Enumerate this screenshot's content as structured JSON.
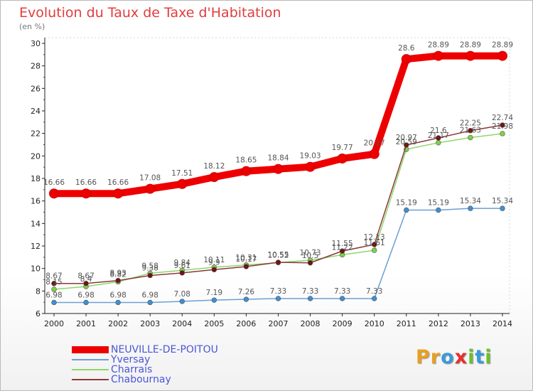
{
  "chart_data": {
    "type": "line",
    "title": "Evolution du Taux de Taxe d'Habitation",
    "subtitle": "(en %)",
    "x": [
      "2000",
      "2001",
      "2002",
      "2003",
      "2004",
      "2005",
      "2006",
      "2007",
      "2008",
      "2009",
      "2010",
      "2011",
      "2012",
      "2013",
      "2014"
    ],
    "ylim": [
      6,
      30
    ],
    "yticks": [
      6,
      8,
      10,
      12,
      14,
      16,
      18,
      20,
      22,
      24,
      26,
      28,
      30
    ],
    "grid": false,
    "legend_position": "bottom-left",
    "series": [
      {
        "name": "NEUVILLE-DE-POITOU",
        "color": "#ee0000",
        "marker_color": "#ee0000",
        "values": [
          16.66,
          16.66,
          16.66,
          17.08,
          17.51,
          18.12,
          18.65,
          18.84,
          19.03,
          19.77,
          20.17,
          28.6,
          28.89,
          28.89,
          28.89
        ],
        "labels": [
          "16.66",
          "16.66",
          "16.66",
          "17.08",
          "17.51",
          "18.12",
          "18.65",
          "18.84",
          "19.03",
          "19.77",
          "20.17",
          "28.6",
          "28.89",
          "28.89",
          "28.89"
        ]
      },
      {
        "name": "Yversay",
        "color": "#6b9fd4",
        "marker_color": "#3f8fd2",
        "values": [
          6.98,
          6.98,
          6.98,
          6.98,
          7.08,
          7.19,
          7.26,
          7.33,
          7.33,
          7.33,
          7.33,
          15.19,
          15.19,
          15.34,
          15.34
        ],
        "labels": [
          "6.98",
          "6.98",
          "6.98",
          "6.98",
          "7.08",
          "7.19",
          "7.26",
          "7.33",
          "7.33",
          "7.33",
          "7.33",
          "15.19",
          "15.19",
          "15.34",
          "15.34"
        ]
      },
      {
        "name": "Charrais",
        "color": "#8fd66a",
        "marker_color": "#7fd048",
        "values": [
          8.15,
          8.4,
          8.82,
          9.58,
          9.84,
          10.11,
          10.31,
          10.52,
          10.73,
          11.22,
          11.61,
          20.59,
          21.17,
          21.63,
          21.98
        ],
        "labels": [
          "8.15",
          "8.4",
          "8.82",
          "9.58",
          "9.84",
          "10.11",
          "10.31",
          "10.52",
          "10.73",
          "11.22",
          "11.61",
          "20.59",
          "21.17",
          "21.63",
          "21.98"
        ]
      },
      {
        "name": "Chabournay",
        "color": "#8a3a3a",
        "marker_color": "#6f1414",
        "values": [
          8.67,
          8.67,
          8.93,
          9.38,
          9.61,
          9.9,
          10.17,
          10.55,
          10.5,
          11.55,
          12.13,
          20.97,
          21.6,
          22.25,
          22.74
        ],
        "labels": [
          "8.67",
          "8.67",
          "8.93",
          "9.38",
          "9.61",
          "9.9",
          "10.17",
          "10.55",
          "10.5",
          "11.55",
          "12.13",
          "20.97",
          "21.6",
          "22.25",
          "22.74"
        ]
      }
    ]
  },
  "legend": {
    "items": [
      {
        "label": "NEUVILLE-DE-POITOU",
        "color": "#ee0000"
      },
      {
        "label": "Yversay",
        "color": "#6b9fd4"
      },
      {
        "label": "Charrais",
        "color": "#8fd66a"
      },
      {
        "label": "Chabournay",
        "color": "#8a3a3a"
      }
    ]
  },
  "logo": {
    "letters": [
      {
        "ch": "P",
        "color": "#e8a020"
      },
      {
        "ch": "r",
        "color": "#e8a020"
      },
      {
        "ch": "o",
        "color": "#3a9ad9"
      },
      {
        "ch": "x",
        "color": "#e83030"
      },
      {
        "ch": "i",
        "color": "#6cbf2a"
      },
      {
        "ch": "t",
        "color": "#3a9ad9"
      },
      {
        "ch": "i",
        "color": "#6cbf2a"
      }
    ]
  }
}
